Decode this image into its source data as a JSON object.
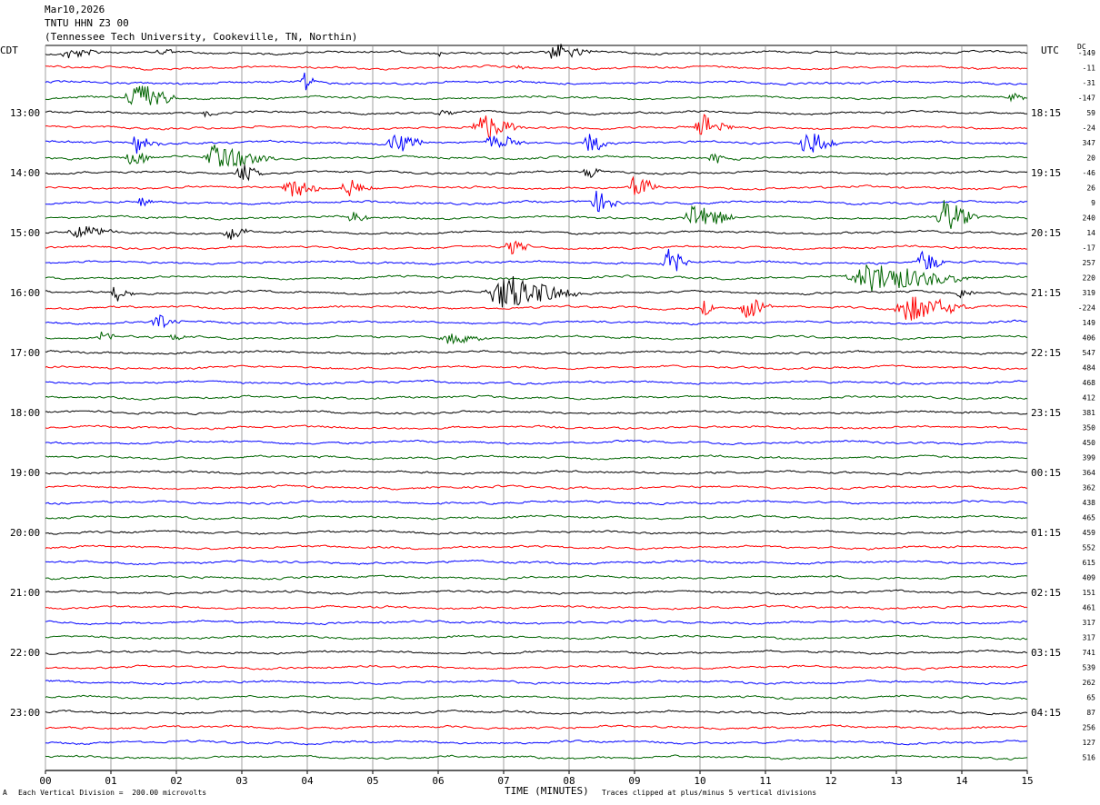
{
  "header": {
    "date": "Mar10,2026",
    "station": "TNTU HHN Z3 00",
    "location": "(Tennessee Tech University, Cookeville, TN, Northin)"
  },
  "left_tz": "CDT",
  "right_tz": "UTC",
  "dc_label": "DC",
  "footer": {
    "scale": "Each Vertical Division =  200.00 microvolts",
    "xlabel": "TIME (MINUTES)",
    "clip": "Traces clipped at plus/minus 5 vertical divisions",
    "corner_mark": "A"
  },
  "colors": {
    "black": "#000000",
    "red": "#ff0000",
    "blue": "#0000ff",
    "green": "#006400",
    "grid": "#888888"
  },
  "chart_data": {
    "type": "line",
    "title": "TNTU HHN Z3 00",
    "xlabel": "TIME (MINUTES)",
    "ylabel": "",
    "xlim": [
      0,
      15
    ],
    "x_ticks": [
      "00",
      "01",
      "02",
      "03",
      "04",
      "05",
      "06",
      "07",
      "08",
      "09",
      "10",
      "11",
      "12",
      "13",
      "14",
      "15"
    ],
    "grid": true,
    "trace_colors": [
      "black",
      "red",
      "blue",
      "green"
    ],
    "left_hour_labels": [
      "13:00",
      "14:00",
      "15:00",
      "16:00",
      "17:00",
      "18:00",
      "19:00",
      "20:00",
      "21:00",
      "22:00",
      "23:00"
    ],
    "right_hour_labels": [
      "18:15",
      "19:15",
      "20:15",
      "21:15",
      "22:15",
      "23:15",
      "00:15",
      "01:15",
      "02:15",
      "03:15",
      "04:15"
    ],
    "dc_offsets": [
      "-149",
      "-11",
      "-31",
      "-147",
      "59",
      "-24",
      "347",
      "20",
      "-46",
      "26",
      "9",
      "240",
      "14",
      "-17",
      "257",
      "220",
      "319",
      "-224",
      "149",
      "406",
      "547",
      "484",
      "468",
      "412",
      "381",
      "350",
      "450",
      "399",
      "364",
      "362",
      "438",
      "465",
      "459",
      "552",
      "615",
      "409",
      "151",
      "461",
      "317",
      "317",
      "741",
      "539",
      "262",
      "65",
      "87",
      "256",
      "127",
      "516"
    ],
    "events": [
      {
        "row": 0,
        "start_min": 0.2,
        "end_min": 1.0,
        "amp": 8
      },
      {
        "row": 0,
        "start_min": 1.7,
        "end_min": 2.0,
        "amp": 10
      },
      {
        "row": 0,
        "start_min": 7.6,
        "end_min": 8.5,
        "amp": 12
      },
      {
        "row": 0,
        "start_min": 6.0,
        "end_min": 6.1,
        "amp": 5
      },
      {
        "row": 1,
        "start_min": 7.1,
        "end_min": 7.4,
        "amp": 4
      },
      {
        "row": 2,
        "start_min": 3.9,
        "end_min": 4.2,
        "amp": 18
      },
      {
        "row": 3,
        "start_min": 1.2,
        "end_min": 2.1,
        "amp": 26
      },
      {
        "row": 3,
        "start_min": 14.7,
        "end_min": 15.0,
        "amp": 8
      },
      {
        "row": 4,
        "start_min": 2.4,
        "end_min": 2.7,
        "amp": 6
      },
      {
        "row": 4,
        "start_min": 6.0,
        "end_min": 6.3,
        "amp": 7
      },
      {
        "row": 5,
        "start_min": 6.5,
        "end_min": 7.4,
        "amp": 22
      },
      {
        "row": 5,
        "start_min": 9.9,
        "end_min": 10.6,
        "amp": 18
      },
      {
        "row": 6,
        "start_min": 1.3,
        "end_min": 1.8,
        "amp": 18
      },
      {
        "row": 6,
        "start_min": 5.2,
        "end_min": 5.9,
        "amp": 16
      },
      {
        "row": 6,
        "start_min": 6.7,
        "end_min": 7.5,
        "amp": 10
      },
      {
        "row": 6,
        "start_min": 8.2,
        "end_min": 8.7,
        "amp": 15
      },
      {
        "row": 6,
        "start_min": 11.5,
        "end_min": 12.2,
        "amp": 20
      },
      {
        "row": 7,
        "start_min": 1.2,
        "end_min": 1.8,
        "amp": 12
      },
      {
        "row": 7,
        "start_min": 2.4,
        "end_min": 3.6,
        "amp": 22
      },
      {
        "row": 7,
        "start_min": 10.1,
        "end_min": 10.6,
        "amp": 8
      },
      {
        "row": 8,
        "start_min": 2.9,
        "end_min": 3.4,
        "amp": 16
      },
      {
        "row": 8,
        "start_min": 8.2,
        "end_min": 8.6,
        "amp": 10
      },
      {
        "row": 9,
        "start_min": 3.6,
        "end_min": 4.3,
        "amp": 16
      },
      {
        "row": 9,
        "start_min": 4.5,
        "end_min": 5.1,
        "amp": 14
      },
      {
        "row": 9,
        "start_min": 8.9,
        "end_min": 9.4,
        "amp": 20
      },
      {
        "row": 10,
        "start_min": 1.4,
        "end_min": 1.7,
        "amp": 12
      },
      {
        "row": 10,
        "start_min": 8.3,
        "end_min": 8.9,
        "amp": 16
      },
      {
        "row": 11,
        "start_min": 4.6,
        "end_min": 5.0,
        "amp": 10
      },
      {
        "row": 11,
        "start_min": 9.7,
        "end_min": 10.7,
        "amp": 20
      },
      {
        "row": 11,
        "start_min": 13.6,
        "end_min": 14.3,
        "amp": 28
      },
      {
        "row": 12,
        "start_min": 0.3,
        "end_min": 1.3,
        "amp": 9
      },
      {
        "row": 12,
        "start_min": 2.7,
        "end_min": 3.2,
        "amp": 14
      },
      {
        "row": 13,
        "start_min": 7.0,
        "end_min": 7.5,
        "amp": 12
      },
      {
        "row": 14,
        "start_min": 9.4,
        "end_min": 9.9,
        "amp": 22
      },
      {
        "row": 14,
        "start_min": 13.3,
        "end_min": 13.8,
        "amp": 20
      },
      {
        "row": 15,
        "start_min": 12.2,
        "end_min": 14.4,
        "amp": 22
      },
      {
        "row": 16,
        "start_min": 1.0,
        "end_min": 1.4,
        "amp": 14
      },
      {
        "row": 16,
        "start_min": 6.7,
        "end_min": 8.3,
        "amp": 28
      },
      {
        "row": 16,
        "start_min": 13.9,
        "end_min": 14.3,
        "amp": 8
      },
      {
        "row": 17,
        "start_min": 10.0,
        "end_min": 10.3,
        "amp": 12
      },
      {
        "row": 17,
        "start_min": 10.6,
        "end_min": 11.2,
        "amp": 18
      },
      {
        "row": 17,
        "start_min": 12.9,
        "end_min": 14.3,
        "amp": 20
      },
      {
        "row": 18,
        "start_min": 1.6,
        "end_min": 2.2,
        "amp": 12
      },
      {
        "row": 19,
        "start_min": 0.8,
        "end_min": 1.2,
        "amp": 10
      },
      {
        "row": 19,
        "start_min": 1.9,
        "end_min": 2.2,
        "amp": 8
      },
      {
        "row": 19,
        "start_min": 6.0,
        "end_min": 6.9,
        "amp": 8
      }
    ]
  }
}
